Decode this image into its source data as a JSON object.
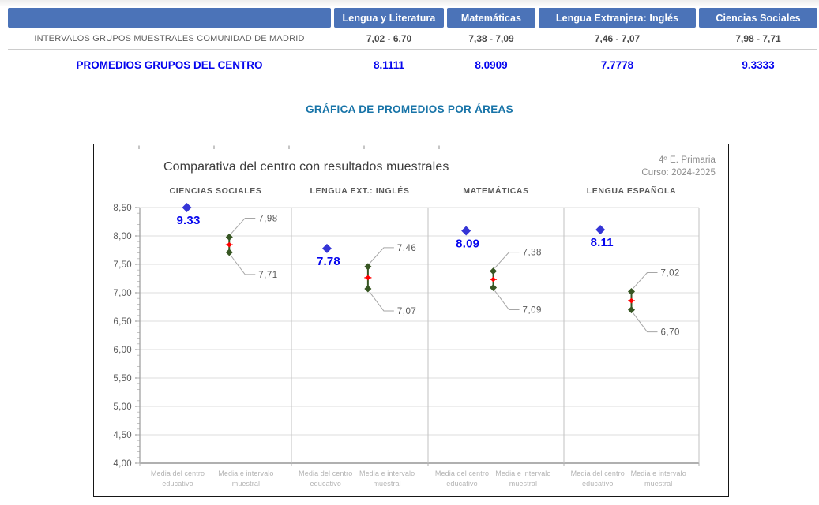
{
  "table": {
    "headers": [
      "Lengua y Literatura",
      "Matemáticas",
      "Lengua Extranjera: Inglés",
      "Ciencias Sociales"
    ],
    "rows": {
      "intervals": {
        "label": "INTERVALOS GRUPOS MUESTRALES COMUNIDAD DE MADRID",
        "values": [
          "7,02 - 6,70",
          "7,38 - 7,09",
          "7,46 - 7,07",
          "7,98 - 7,71"
        ]
      },
      "averages": {
        "label": "PROMEDIOS GRUPOS DEL CENTRO",
        "values": [
          "8.1111",
          "8.0909",
          "7.7778",
          "9.3333"
        ]
      }
    }
  },
  "section_title": "GRÁFICA DE PROMEDIOS POR ÁREAS",
  "chart_data": {
    "type": "scatter",
    "title": "Comparativa del centro con resultados muestrales",
    "annotations": [
      "4º E. Primaria",
      "Curso: 2024-2025"
    ],
    "ylim": [
      4.0,
      8.5
    ],
    "ytick_step": 0.5,
    "ytick_labels": [
      "4,00",
      "4,50",
      "5,00",
      "5,50",
      "6,00",
      "6,50",
      "7,00",
      "7,50",
      "8,00",
      "8,50"
    ],
    "x_categories": [
      [
        "Media del centro",
        "educativo"
      ],
      [
        "Media e intervalo",
        "muestral"
      ]
    ],
    "panels": [
      {
        "name": "CIENCIAS SOCIALES",
        "center_mean": 9.33,
        "center_label": "9.33",
        "interval_high": 7.98,
        "interval_low": 7.71,
        "interval_high_label": "7,98",
        "interval_low_label": "7,71"
      },
      {
        "name": "LENGUA EXT.: INGLÉS",
        "center_mean": 7.78,
        "center_label": "7.78",
        "interval_high": 7.46,
        "interval_low": 7.07,
        "interval_high_label": "7,46",
        "interval_low_label": "7,07"
      },
      {
        "name": "MATEMÁTICAS",
        "center_mean": 8.09,
        "center_label": "8.09",
        "interval_high": 7.38,
        "interval_low": 7.09,
        "interval_high_label": "7,38",
        "interval_low_label": "7,09"
      },
      {
        "name": "LENGUA ESPAÑOLA",
        "center_mean": 8.11,
        "center_label": "8.11",
        "interval_high": 7.02,
        "interval_low": 6.7,
        "interval_high_label": "7,02",
        "interval_low_label": "6,70"
      }
    ],
    "colors": {
      "header_blue": "#4b73b8",
      "center_marker": "#3535d6",
      "center_label": "#0505ee",
      "interval_marker": "#375623",
      "interval_mid": "#ff0000",
      "gridline": "#dcdcdc",
      "panel_divider": "#c2c2c2"
    }
  }
}
